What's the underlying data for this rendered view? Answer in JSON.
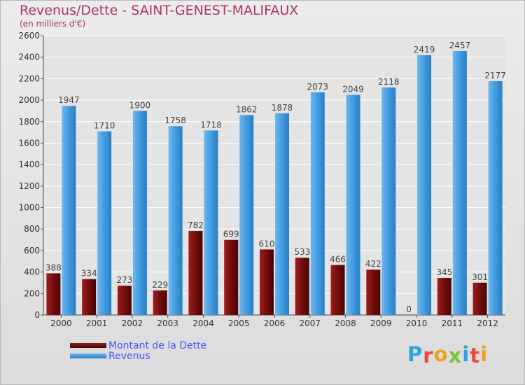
{
  "title": "Revenus/Dette - SAINT-GENEST-MALIFAUX",
  "subtitle": "(en milliers d'€)",
  "legend": {
    "debt_label": "Montant de la Dette",
    "revenue_label": "Revenus"
  },
  "logo": {
    "letters": [
      "P",
      "r",
      "o",
      "x",
      "i",
      "t",
      "i"
    ],
    "colors": [
      "#2ea3dc",
      "#e94b3c",
      "#f0a020",
      "#7dc242",
      "#2ea3dc",
      "#e94b3c",
      "#f0a020"
    ]
  },
  "colors": {
    "debt": "#7a1212",
    "revenue": "#4ea3e6",
    "title": "#b0306a"
  },
  "chart_data": {
    "type": "bar",
    "categories": [
      "2000",
      "2001",
      "2002",
      "2003",
      "2004",
      "2005",
      "2006",
      "2007",
      "2008",
      "2009",
      "2010",
      "2011",
      "2012"
    ],
    "series": [
      {
        "name": "Montant de la Dette",
        "values": [
          388,
          334,
          273,
          229,
          782,
          699,
          610,
          533,
          466,
          422,
          0,
          345,
          301
        ]
      },
      {
        "name": "Revenus",
        "values": [
          1947,
          1710,
          1900,
          1758,
          1718,
          1862,
          1878,
          2073,
          2049,
          2118,
          2419,
          2457,
          2177
        ]
      }
    ],
    "title": "Revenus/Dette - SAINT-GENEST-MALIFAUX",
    "ylabel": "(en milliers d'€)",
    "ylim": [
      0,
      2600
    ],
    "yticks": [
      0,
      200,
      400,
      600,
      800,
      1000,
      1200,
      1400,
      1600,
      1800,
      2000,
      2200,
      2400,
      2600
    ],
    "grid": true,
    "legend_position": "bottom-left"
  }
}
